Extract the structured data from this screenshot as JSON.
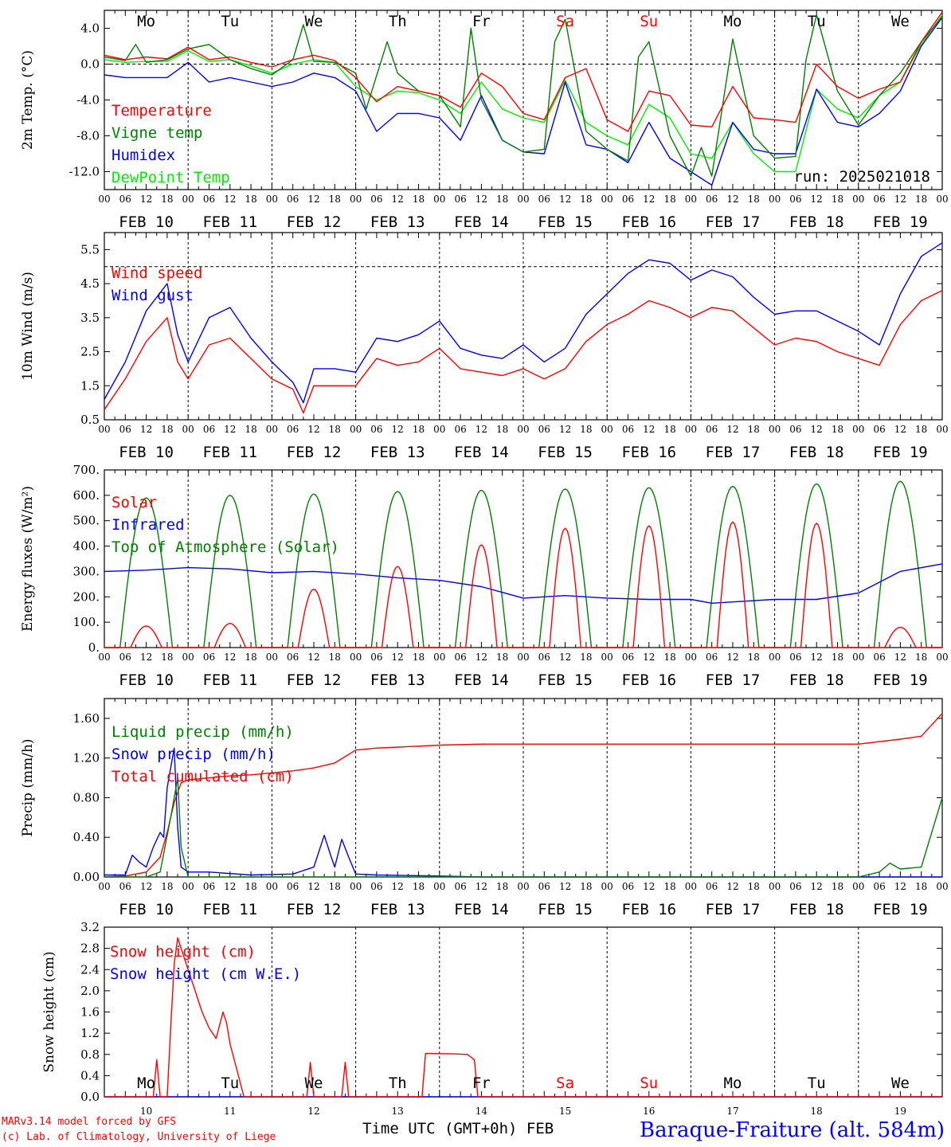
{
  "days": [
    "FEB 10",
    "FEB 11",
    "FEB 12",
    "FEB 13",
    "FEB 14",
    "FEB 15",
    "FEB 16",
    "FEB 17",
    "FEB 18",
    "FEB 19"
  ],
  "weekdays": [
    {
      "label": "Mo",
      "color": "#000000"
    },
    {
      "label": "Tu",
      "color": "#000000"
    },
    {
      "label": "We",
      "color": "#000000"
    },
    {
      "label": "Th",
      "color": "#000000"
    },
    {
      "label": "Fr",
      "color": "#000000"
    },
    {
      "label": "Sa",
      "color": "#ff0000"
    },
    {
      "label": "Su",
      "color": "#ff0000"
    },
    {
      "label": "Mo",
      "color": "#000000"
    },
    {
      "label": "Tu",
      "color": "#000000"
    },
    {
      "label": "We",
      "color": "#000000"
    }
  ],
  "hour_ticks": [
    "00",
    "06",
    "12",
    "18"
  ],
  "last_tick": "00",
  "bottom_day_numbers": [
    "10",
    "11",
    "12",
    "13",
    "14",
    "15",
    "16",
    "17",
    "18",
    "19"
  ],
  "run_label": "run: 2025021018",
  "credits": [
    "MARv3.14 model forced by GFS",
    "(c) Lab. of Climatology, University of Liege"
  ],
  "time_axis_label": "Time UTC (GMT+0h) FEB",
  "station": "Baraque-Fraiture (alt. 584m)",
  "colors": {
    "red": "#ff0000",
    "green": "#008000",
    "blue": "#0000ff",
    "lightgreen": "#00ee00"
  },
  "chart_data": [
    {
      "type": "line",
      "ylabel": "2m Temp. (°C)",
      "ylim": [
        -14,
        6
      ],
      "yticks": [
        -12,
        -8,
        -4,
        0,
        4
      ],
      "ytick_labels": [
        "-12.0",
        "-8.0",
        "-4.0",
        "0.0",
        "4.0"
      ],
      "ref_line": 0,
      "x_unit": "hours since 2025-02-10 00 UTC",
      "series": [
        {
          "name": "Temperature",
          "color": "#ff0000",
          "x": [
            0,
            6,
            12,
            18,
            24,
            30,
            36,
            42,
            48,
            54,
            60,
            66,
            72,
            78,
            84,
            90,
            96,
            102,
            108,
            114,
            120,
            126,
            132,
            138,
            144,
            150,
            156,
            162,
            168,
            174,
            180,
            186,
            192,
            198,
            204,
            210,
            216,
            222,
            228,
            234,
            240
          ],
          "y": [
            1,
            0.5,
            0.8,
            0.6,
            1.9,
            0.5,
            0.8,
            0.2,
            -0.3,
            0.5,
            1.0,
            0.4,
            -1.5,
            -4.2,
            -2.5,
            -3.0,
            -3.5,
            -4.8,
            -1.0,
            -2.5,
            -5.5,
            -6.2,
            -1.5,
            -0.5,
            -6.2,
            -7.5,
            -3.0,
            -3.5,
            -6.8,
            -7.0,
            -2.5,
            -6.0,
            -6.2,
            -6.5,
            0.0,
            -2.5,
            -3.8,
            -2.8,
            -2.0,
            2.5,
            5.8
          ]
        },
        {
          "name": "Vigne temp",
          "color": "#008000",
          "x": [
            0,
            6,
            9,
            12,
            18,
            24,
            30,
            36,
            42,
            48,
            54,
            57,
            60,
            66,
            72,
            75,
            81,
            84,
            90,
            96,
            102,
            105,
            108,
            114,
            120,
            126,
            129,
            132,
            138,
            144,
            150,
            153,
            156,
            162,
            168,
            171,
            174,
            180,
            186,
            192,
            198,
            201,
            204,
            210,
            216,
            222,
            228,
            234,
            240
          ],
          "y": [
            0.8,
            0.4,
            2.2,
            0.2,
            0.5,
            1.7,
            2.2,
            0.5,
            -0.5,
            -1.2,
            0.5,
            4.4,
            0.3,
            0.2,
            -1.0,
            -5.0,
            2.5,
            -1.0,
            -3.0,
            -3.5,
            -7.0,
            4.0,
            -4.0,
            -8.5,
            -9.8,
            -9.5,
            2.5,
            5.0,
            -7.5,
            -9.5,
            -10.8,
            0.8,
            2.5,
            -8.0,
            -12.5,
            -9.3,
            -12.5,
            2.8,
            -8.0,
            -10.5,
            -10.3,
            0.5,
            5.5,
            -3.0,
            -6.8,
            -3.5,
            -1.0,
            2.5,
            5.3
          ]
        },
        {
          "name": "Humidex",
          "color": "#0000ff",
          "x": [
            0,
            6,
            12,
            18,
            24,
            30,
            36,
            42,
            48,
            54,
            60,
            66,
            72,
            78,
            84,
            90,
            96,
            102,
            108,
            114,
            120,
            126,
            132,
            138,
            144,
            150,
            156,
            162,
            168,
            174,
            180,
            186,
            192,
            198,
            204,
            210,
            216,
            222,
            228,
            234,
            240
          ],
          "y": [
            -1.2,
            -1.5,
            -1.5,
            -1.5,
            0.2,
            -2.0,
            -1.5,
            -2.0,
            -2.5,
            -2.0,
            -1.0,
            -1.5,
            -3.0,
            -7.5,
            -5.5,
            -5.5,
            -6.0,
            -8.5,
            -3.5,
            -8.5,
            -9.8,
            -10.0,
            -2.0,
            -9.0,
            -9.5,
            -11.0,
            -6.5,
            -10.5,
            -12.0,
            -13.5,
            -6.5,
            -9.5,
            -10.0,
            -10.0,
            -2.8,
            -6.5,
            -7.0,
            -5.5,
            -3.0,
            2.0,
            5.2
          ]
        },
        {
          "name": "DewPoint Temp",
          "color": "#00ee00",
          "x": [
            0,
            6,
            12,
            18,
            24,
            30,
            36,
            42,
            48,
            54,
            60,
            66,
            72,
            78,
            84,
            90,
            96,
            102,
            108,
            114,
            120,
            126,
            132,
            138,
            144,
            150,
            156,
            162,
            168,
            174,
            180,
            186,
            192,
            198,
            204,
            210,
            216,
            222,
            228,
            234,
            240
          ],
          "y": [
            0.5,
            0.2,
            0.3,
            0.3,
            1.5,
            0.3,
            0.5,
            -0.2,
            -1.0,
            0.0,
            0.5,
            0.2,
            -2.5,
            -4.0,
            -3.0,
            -3.2,
            -4.0,
            -5.5,
            -2.0,
            -5.0,
            -6.0,
            -6.5,
            -1.8,
            -6.5,
            -8.0,
            -9.0,
            -4.5,
            -6.0,
            -10.0,
            -10.5,
            -6.5,
            -10.0,
            -12.0,
            -12.0,
            -2.8,
            -5.0,
            -6.0,
            -3.5,
            -2.0,
            2.2,
            5.5
          ]
        }
      ]
    },
    {
      "type": "line",
      "ylabel": "10m Wind (m/s)",
      "ylim": [
        0.5,
        6.0
      ],
      "yticks": [
        0.5,
        1.5,
        2.5,
        3.5,
        4.5,
        5.5
      ],
      "ytick_labels": [
        "0.5",
        "1.5",
        "2.5",
        "3.5",
        "4.5",
        "5.5"
      ],
      "ref_line": 5,
      "x_unit": "hours since 2025-02-10 00 UTC",
      "series": [
        {
          "name": "Wind speed",
          "color": "#ff0000",
          "x": [
            0,
            6,
            12,
            18,
            21,
            24,
            30,
            36,
            42,
            48,
            54,
            57,
            60,
            66,
            72,
            78,
            84,
            90,
            96,
            102,
            108,
            114,
            120,
            126,
            132,
            138,
            144,
            150,
            156,
            162,
            168,
            174,
            180,
            186,
            192,
            198,
            204,
            210,
            216,
            222,
            228,
            234,
            240
          ],
          "y": [
            0.8,
            1.7,
            2.8,
            3.5,
            2.2,
            1.7,
            2.7,
            2.9,
            2.3,
            1.7,
            1.4,
            0.7,
            1.5,
            1.5,
            1.5,
            2.3,
            2.1,
            2.2,
            2.6,
            2.0,
            1.9,
            1.8,
            2.0,
            1.7,
            2.0,
            2.8,
            3.3,
            3.6,
            4.0,
            3.8,
            3.5,
            3.8,
            3.7,
            3.2,
            2.7,
            2.9,
            2.8,
            2.5,
            2.3,
            2.1,
            3.3,
            4.0,
            4.3
          ]
        },
        {
          "name": "Wind gust",
          "color": "#0000ff",
          "x": [
            0,
            6,
            12,
            18,
            21,
            24,
            30,
            36,
            42,
            48,
            54,
            57,
            60,
            66,
            72,
            78,
            84,
            90,
            96,
            102,
            108,
            114,
            120,
            126,
            132,
            138,
            144,
            150,
            156,
            162,
            168,
            174,
            180,
            186,
            192,
            198,
            204,
            210,
            216,
            222,
            228,
            234,
            240
          ],
          "y": [
            1.1,
            2.2,
            3.7,
            4.5,
            3.0,
            2.2,
            3.5,
            3.8,
            2.9,
            2.2,
            1.6,
            1.0,
            2.0,
            2.0,
            1.9,
            2.9,
            2.8,
            3.0,
            3.4,
            2.6,
            2.4,
            2.3,
            2.7,
            2.2,
            2.6,
            3.6,
            4.2,
            4.8,
            5.2,
            5.1,
            4.6,
            4.9,
            4.7,
            4.1,
            3.6,
            3.7,
            3.7,
            3.4,
            3.1,
            2.7,
            4.2,
            5.3,
            5.7
          ]
        }
      ]
    },
    {
      "type": "line",
      "ylabel": "Energy fluxes (W/m²)",
      "ylim": [
        0,
        700
      ],
      "yticks": [
        0,
        100,
        200,
        300,
        400,
        500,
        600,
        700
      ],
      "ytick_labels": [
        "0.",
        "100.",
        "200.",
        "300.",
        "400.",
        "500.",
        "600.",
        "700."
      ],
      "ref_line": null,
      "x_unit": "hours since 2025-02-10 00 UTC",
      "series": [
        {
          "name": "Solar",
          "color": "#ff0000",
          "peak_hour": 12,
          "peaks": [
            85,
            95,
            230,
            320,
            405,
            470,
            480,
            495,
            490,
            80
          ],
          "halfwidth": 4.5
        },
        {
          "name": "Infrared",
          "color": "#0000ff",
          "x": [
            0,
            12,
            24,
            36,
            48,
            60,
            72,
            84,
            96,
            108,
            120,
            132,
            144,
            156,
            168,
            174,
            180,
            192,
            204,
            216,
            228,
            240
          ],
          "y": [
            300,
            305,
            315,
            310,
            295,
            300,
            290,
            275,
            265,
            240,
            195,
            205,
            195,
            190,
            190,
            175,
            180,
            190,
            190,
            215,
            300,
            330
          ]
        },
        {
          "name": "Top of Atmosphere (Solar)",
          "color": "#008000",
          "peak_hour": 12,
          "peaks": [
            590,
            600,
            605,
            615,
            620,
            625,
            630,
            635,
            645,
            655
          ],
          "halfwidth": 7.5
        }
      ]
    },
    {
      "type": "line",
      "ylabel": "Precip (mm/h)",
      "ylim": [
        0,
        1.8
      ],
      "yticks": [
        0,
        0.4,
        0.8,
        1.2,
        1.6
      ],
      "ytick_labels": [
        "0.00",
        "0.40",
        "0.80",
        "1.20",
        "1.60"
      ],
      "ref_line": null,
      "x_unit": "hours since 2025-02-10 00 UTC",
      "series": [
        {
          "name": "Liquid precip (mm/h)",
          "color": "#008000",
          "x": [
            0,
            12,
            16,
            19,
            21,
            22,
            24,
            36,
            72,
            216,
            222,
            225,
            228,
            234,
            240
          ],
          "y": [
            0,
            0,
            0.05,
            0.6,
            1.0,
            0.3,
            0,
            0,
            0,
            0,
            0.05,
            0.14,
            0.08,
            0.1,
            0.8
          ]
        },
        {
          "name": "Snow precip (mm/h)",
          "color": "#0000ff",
          "x": [
            0,
            6,
            8,
            10,
            12,
            14,
            16,
            17,
            18,
            20,
            21,
            22,
            24,
            30,
            42,
            54,
            60,
            63,
            65,
            66,
            68,
            70,
            72,
            78,
            96,
            108,
            240
          ],
          "y": [
            0.02,
            0.02,
            0.22,
            0.15,
            0.1,
            0.3,
            0.45,
            0.4,
            0.9,
            1.3,
            0.5,
            0.1,
            0.05,
            0.05,
            0.02,
            0.03,
            0.1,
            0.42,
            0.2,
            0.1,
            0.38,
            0.2,
            0.03,
            0.02,
            0.01,
            0,
            0
          ]
        },
        {
          "name": "Total cumulated (cm)",
          "color": "#ff0000",
          "x": [
            0,
            6,
            12,
            16,
            18,
            20,
            22,
            24,
            30,
            36,
            42,
            48,
            54,
            60,
            66,
            72,
            78,
            84,
            96,
            108,
            216,
            228,
            234,
            240
          ],
          "y": [
            0,
            0.01,
            0.05,
            0.2,
            0.45,
            0.75,
            0.95,
            0.98,
            1.0,
            1.02,
            1.03,
            1.05,
            1.07,
            1.1,
            1.15,
            1.28,
            1.3,
            1.31,
            1.33,
            1.34,
            1.34,
            1.39,
            1.42,
            1.65
          ]
        }
      ]
    },
    {
      "type": "line",
      "ylabel": "Snow height (cm)",
      "ylim": [
        0,
        3.2
      ],
      "yticks": [
        0,
        0.4,
        0.8,
        1.2,
        1.6,
        2.0,
        2.4,
        2.8,
        3.2
      ],
      "ytick_labels": [
        "0.0",
        "0.4",
        "0.8",
        "1.2",
        "1.6",
        "2.0",
        "2.4",
        "2.8",
        "3.2"
      ],
      "ref_line": null,
      "x_unit": "hours since 2025-02-10 00 UTC",
      "series": [
        {
          "name": "Snow height (cm)",
          "color": "#ff0000",
          "x": [
            0,
            14,
            15,
            16,
            17,
            18,
            19,
            20,
            21,
            22,
            24,
            26,
            28,
            30,
            32,
            34,
            35,
            36,
            38,
            40,
            41,
            42,
            58,
            59,
            60,
            68,
            69,
            70,
            91,
            92,
            100,
            104,
            106,
            107,
            108,
            240
          ],
          "y": [
            0,
            0,
            0.7,
            0,
            0,
            0,
            1.3,
            2.5,
            3.0,
            2.8,
            2.4,
            2.0,
            1.6,
            1.3,
            1.1,
            1.6,
            1.4,
            1.0,
            0.5,
            0,
            0,
            0,
            0,
            0.65,
            0,
            0,
            0.65,
            0,
            0,
            0.82,
            0.81,
            0.8,
            0.7,
            0,
            0,
            0
          ]
        },
        {
          "name": "Snow height (cm W.E.)",
          "color": "#0000ff",
          "x": [
            0,
            240
          ],
          "y": [
            0,
            0
          ]
        }
      ]
    }
  ]
}
